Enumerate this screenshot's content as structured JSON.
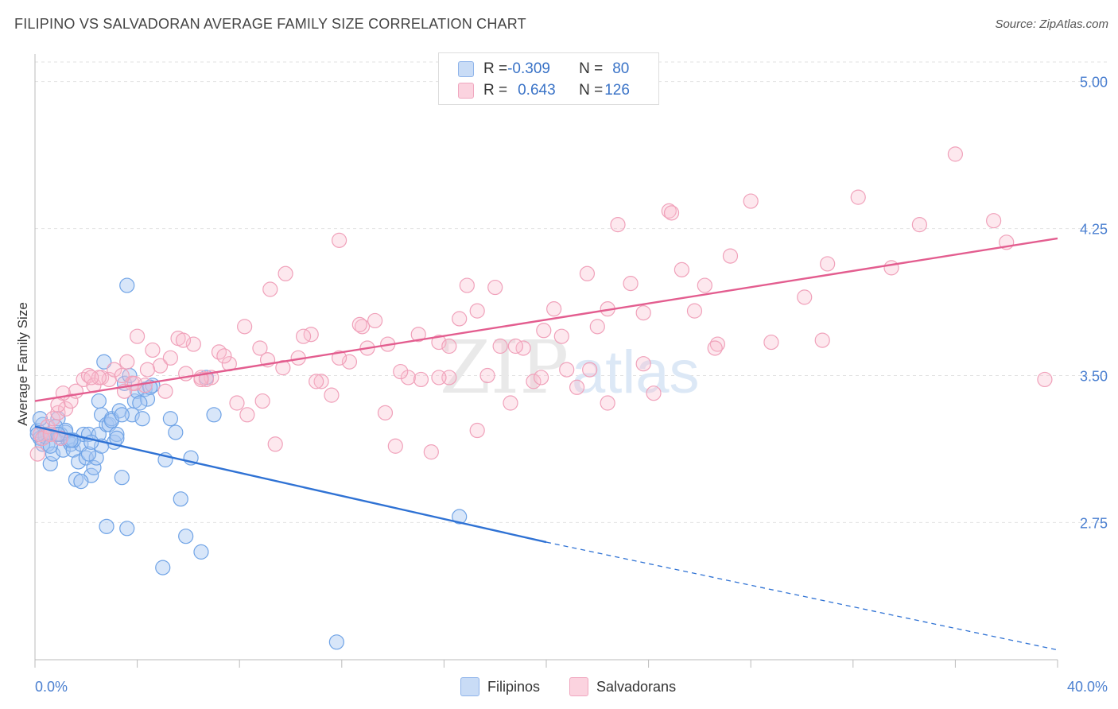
{
  "header": {
    "title": "FILIPINO VS SALVADORAN AVERAGE FAMILY SIZE CORRELATION CHART",
    "source": "Source: ZipAtlas.com"
  },
  "watermark": {
    "zip": "ZIP",
    "atlas": "atlas"
  },
  "legend": {
    "rows": [
      {
        "r_label": "R = ",
        "r_value": "-0.309",
        "n_label": "N = ",
        "n_value": "80",
        "color": "#a9c8f2"
      },
      {
        "r_label": "R = ",
        "r_value": "0.643",
        "n_label": "N = ",
        "n_value": "126",
        "color": "#f6b8cb"
      }
    ]
  },
  "bottom_legend": [
    {
      "label": "Filipinos",
      "color": "#a9c8f2"
    },
    {
      "label": "Salvadorans",
      "color": "#f6b8cb"
    }
  ],
  "chart_data": {
    "type": "scatter",
    "xlabel": "",
    "ylabel": "Average Family Size",
    "xlim": [
      0,
      40
    ],
    "ylim": [
      2.05,
      5.1
    ],
    "x_tick_labels": [
      "0.0%",
      "40.0%"
    ],
    "y_ticks": [
      2.75,
      3.5,
      4.25,
      5.0
    ],
    "y_tick_labels": [
      "2.75",
      "3.50",
      "4.25",
      "5.00"
    ],
    "grid": true,
    "legend_position": "top-center",
    "series": [
      {
        "name": "Filipinos",
        "color": "#6fa3e6",
        "line_color": "#2f72d4",
        "trend": {
          "x": [
            0,
            20
          ],
          "y": [
            3.24,
            2.65
          ],
          "dashed_to": [
            40,
            2.1
          ]
        },
        "points": [
          [
            0.1,
            3.22
          ],
          [
            0.2,
            3.18
          ],
          [
            0.3,
            3.25
          ],
          [
            0.4,
            3.2
          ],
          [
            0.5,
            3.15
          ],
          [
            0.6,
            3.05
          ],
          [
            0.7,
            3.1
          ],
          [
            0.8,
            3.2
          ],
          [
            0.9,
            3.28
          ],
          [
            1.0,
            3.18
          ],
          [
            1.1,
            3.12
          ],
          [
            1.2,
            3.21
          ],
          [
            1.3,
            3.17
          ],
          [
            1.4,
            3.15
          ],
          [
            1.5,
            3.12
          ],
          [
            1.6,
            2.97
          ],
          [
            1.7,
            3.06
          ],
          [
            1.8,
            3.15
          ],
          [
            1.9,
            3.2
          ],
          [
            2.0,
            3.08
          ],
          [
            2.1,
            3.2
          ],
          [
            2.2,
            2.99
          ],
          [
            2.3,
            3.03
          ],
          [
            2.4,
            3.08
          ],
          [
            2.5,
            3.2
          ],
          [
            2.6,
            3.3
          ],
          [
            2.7,
            3.57
          ],
          [
            2.8,
            3.25
          ],
          [
            2.9,
            3.25
          ],
          [
            3.0,
            3.28
          ],
          [
            3.1,
            3.16
          ],
          [
            3.2,
            3.2
          ],
          [
            3.3,
            3.32
          ],
          [
            3.4,
            2.98
          ],
          [
            3.5,
            3.46
          ],
          [
            3.6,
            3.96
          ],
          [
            3.7,
            3.5
          ],
          [
            3.8,
            3.3
          ],
          [
            3.9,
            3.37
          ],
          [
            4.0,
            3.42
          ],
          [
            4.2,
            3.28
          ],
          [
            4.3,
            3.43
          ],
          [
            4.4,
            3.38
          ],
          [
            4.6,
            3.45
          ],
          [
            5.0,
            2.52
          ],
          [
            5.1,
            3.07
          ],
          [
            5.3,
            3.28
          ],
          [
            5.5,
            3.21
          ],
          [
            5.7,
            2.87
          ],
          [
            5.9,
            2.68
          ],
          [
            6.1,
            3.08
          ],
          [
            6.5,
            2.6
          ],
          [
            6.7,
            3.49
          ],
          [
            7.0,
            3.3
          ],
          [
            11.8,
            2.14
          ],
          [
            16.6,
            2.78
          ],
          [
            0.5,
            3.2
          ],
          [
            1.0,
            3.2
          ],
          [
            0.3,
            3.15
          ],
          [
            0.8,
            3.24
          ],
          [
            1.5,
            3.17
          ],
          [
            2.1,
            3.1
          ],
          [
            3.2,
            3.18
          ],
          [
            0.4,
            3.19
          ],
          [
            1.2,
            3.22
          ],
          [
            2.6,
            3.14
          ],
          [
            0.2,
            3.28
          ],
          [
            1.8,
            2.96
          ],
          [
            3.6,
            2.72
          ],
          [
            4.1,
            3.36
          ],
          [
            2.8,
            2.73
          ],
          [
            0.6,
            3.14
          ],
          [
            1.4,
            3.17
          ],
          [
            2.5,
            3.37
          ],
          [
            3.0,
            3.27
          ],
          [
            0.9,
            3.2
          ],
          [
            0.1,
            3.2
          ],
          [
            2.2,
            3.16
          ],
          [
            3.4,
            3.3
          ],
          [
            4.5,
            3.44
          ]
        ]
      },
      {
        "name": "Salvadorans",
        "color": "#f3a5bd",
        "line_color": "#e35d8f",
        "trend": {
          "x": [
            0,
            40
          ],
          "y": [
            3.37,
            4.2
          ]
        },
        "points": [
          [
            0.1,
            3.1
          ],
          [
            0.2,
            3.2
          ],
          [
            0.3,
            3.18
          ],
          [
            0.5,
            3.24
          ],
          [
            0.7,
            3.28
          ],
          [
            0.9,
            3.31
          ],
          [
            1.0,
            3.18
          ],
          [
            1.2,
            3.33
          ],
          [
            1.4,
            3.37
          ],
          [
            1.6,
            3.42
          ],
          [
            1.9,
            3.48
          ],
          [
            2.1,
            3.5
          ],
          [
            2.3,
            3.45
          ],
          [
            2.6,
            3.49
          ],
          [
            2.9,
            3.48
          ],
          [
            3.1,
            3.53
          ],
          [
            3.4,
            3.5
          ],
          [
            3.6,
            3.57
          ],
          [
            3.8,
            3.46
          ],
          [
            4.0,
            3.7
          ],
          [
            4.3,
            3.45
          ],
          [
            4.6,
            3.63
          ],
          [
            4.9,
            3.55
          ],
          [
            5.1,
            3.42
          ],
          [
            5.3,
            3.59
          ],
          [
            5.6,
            3.69
          ],
          [
            5.9,
            3.51
          ],
          [
            6.2,
            3.66
          ],
          [
            6.5,
            3.49
          ],
          [
            6.9,
            3.49
          ],
          [
            7.2,
            3.62
          ],
          [
            7.6,
            3.56
          ],
          [
            7.9,
            3.36
          ],
          [
            8.3,
            3.3
          ],
          [
            8.8,
            3.64
          ],
          [
            9.1,
            3.58
          ],
          [
            9.4,
            3.15
          ],
          [
            9.8,
            4.02
          ],
          [
            10.3,
            3.59
          ],
          [
            10.8,
            3.71
          ],
          [
            11.2,
            3.47
          ],
          [
            11.6,
            3.4
          ],
          [
            11.9,
            4.19
          ],
          [
            12.3,
            3.57
          ],
          [
            12.8,
            3.75
          ],
          [
            13.3,
            3.78
          ],
          [
            13.7,
            3.31
          ],
          [
            14.1,
            3.14
          ],
          [
            14.6,
            3.49
          ],
          [
            15.0,
            3.71
          ],
          [
            15.5,
            3.11
          ],
          [
            15.8,
            3.67
          ],
          [
            16.2,
            3.49
          ],
          [
            16.6,
            3.79
          ],
          [
            16.9,
            3.96
          ],
          [
            17.3,
            3.22
          ],
          [
            17.7,
            3.5
          ],
          [
            18.2,
            3.65
          ],
          [
            18.6,
            3.36
          ],
          [
            19.1,
            3.64
          ],
          [
            19.5,
            3.47
          ],
          [
            19.9,
            3.73
          ],
          [
            20.3,
            3.84
          ],
          [
            20.8,
            3.53
          ],
          [
            21.2,
            3.44
          ],
          [
            21.6,
            4.02
          ],
          [
            22.0,
            3.75
          ],
          [
            22.4,
            3.36
          ],
          [
            22.8,
            4.27
          ],
          [
            23.3,
            3.97
          ],
          [
            23.8,
            3.56
          ],
          [
            24.2,
            3.41
          ],
          [
            24.8,
            4.34
          ],
          [
            25.3,
            4.04
          ],
          [
            25.8,
            3.83
          ],
          [
            26.2,
            3.96
          ],
          [
            26.7,
            3.66
          ],
          [
            27.2,
            4.11
          ],
          [
            28.0,
            4.39
          ],
          [
            28.8,
            3.67
          ],
          [
            30.1,
            3.9
          ],
          [
            31.0,
            4.07
          ],
          [
            32.2,
            4.41
          ],
          [
            33.5,
            4.05
          ],
          [
            34.6,
            4.27
          ],
          [
            36.0,
            4.63
          ],
          [
            37.5,
            4.29
          ],
          [
            38.0,
            4.18
          ],
          [
            39.5,
            3.48
          ],
          [
            6.7,
            3.48
          ],
          [
            8.9,
            3.37
          ],
          [
            10.5,
            3.7
          ],
          [
            13.0,
            3.64
          ],
          [
            15.8,
            3.49
          ],
          [
            18.0,
            3.95
          ],
          [
            19.8,
            3.49
          ],
          [
            21.7,
            3.53
          ],
          [
            23.8,
            3.82
          ],
          [
            26.6,
            3.64
          ],
          [
            30.8,
            3.68
          ],
          [
            2.5,
            3.49
          ],
          [
            4.4,
            3.53
          ],
          [
            1.1,
            3.41
          ],
          [
            0.6,
            3.2
          ],
          [
            3.9,
            3.46
          ],
          [
            5.8,
            3.68
          ],
          [
            7.4,
            3.6
          ],
          [
            9.7,
            3.54
          ],
          [
            11.9,
            3.59
          ],
          [
            14.3,
            3.52
          ],
          [
            16.2,
            3.65
          ],
          [
            17.3,
            3.83
          ],
          [
            18.8,
            3.65
          ],
          [
            20.6,
            3.7
          ],
          [
            22.4,
            3.84
          ],
          [
            24.9,
            4.33
          ],
          [
            9.2,
            3.94
          ],
          [
            11.0,
            3.47
          ],
          [
            12.7,
            3.76
          ],
          [
            8.2,
            3.75
          ],
          [
            6.5,
            3.48
          ],
          [
            3.5,
            3.42
          ],
          [
            2.2,
            3.49
          ],
          [
            0.9,
            3.35
          ],
          [
            13.8,
            3.66
          ],
          [
            15.1,
            3.48
          ]
        ]
      }
    ]
  }
}
